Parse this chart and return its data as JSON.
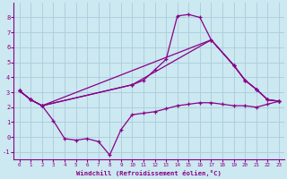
{
  "bg_color": "#cce8f0",
  "grid_color": "#aaccdd",
  "line_color": "#880088",
  "xlim": [
    -0.5,
    23.5
  ],
  "ylim": [
    -1.5,
    9.0
  ],
  "yticks": [
    -1,
    0,
    1,
    2,
    3,
    4,
    5,
    6,
    7,
    8
  ],
  "xticks": [
    0,
    1,
    2,
    3,
    4,
    5,
    6,
    7,
    8,
    9,
    10,
    11,
    12,
    13,
    14,
    15,
    16,
    17,
    18,
    19,
    20,
    21,
    22,
    23
  ],
  "xlabel": "Windchill (Refroidissement éolien,°C)",
  "line1_upper": {
    "x": [
      0,
      1,
      2,
      10,
      11,
      12,
      13,
      14,
      15,
      16,
      17,
      19,
      20,
      21,
      22,
      23
    ],
    "y": [
      3.1,
      2.5,
      2.1,
      3.5,
      3.8,
      4.5,
      5.2,
      8.1,
      8.2,
      8.0,
      6.5,
      4.8,
      3.8,
      3.2,
      2.5,
      2.4
    ]
  },
  "line2_mid_upper": {
    "x": [
      0,
      1,
      2,
      10,
      17,
      19,
      20,
      21,
      22,
      23
    ],
    "y": [
      3.1,
      2.5,
      2.1,
      3.5,
      6.5,
      4.8,
      3.8,
      3.2,
      2.5,
      2.4
    ]
  },
  "line3_mid_lower": {
    "x": [
      0,
      1,
      2,
      17,
      19,
      20,
      21,
      22,
      23
    ],
    "y": [
      3.1,
      2.5,
      2.1,
      6.5,
      4.8,
      3.8,
      3.2,
      2.5,
      2.4
    ]
  },
  "line4_lower": {
    "x": [
      0,
      1,
      2,
      3,
      4,
      5,
      6,
      7,
      8,
      9,
      10,
      11,
      12,
      13,
      14,
      15,
      16,
      17,
      18,
      19,
      20,
      21,
      22,
      23
    ],
    "y": [
      3.1,
      2.5,
      2.1,
      1.1,
      -0.1,
      -0.2,
      -0.1,
      -0.3,
      -1.2,
      0.5,
      1.5,
      1.6,
      1.7,
      1.9,
      2.1,
      2.2,
      2.3,
      2.3,
      2.2,
      2.1,
      2.1,
      2.0,
      2.2,
      2.4
    ]
  }
}
